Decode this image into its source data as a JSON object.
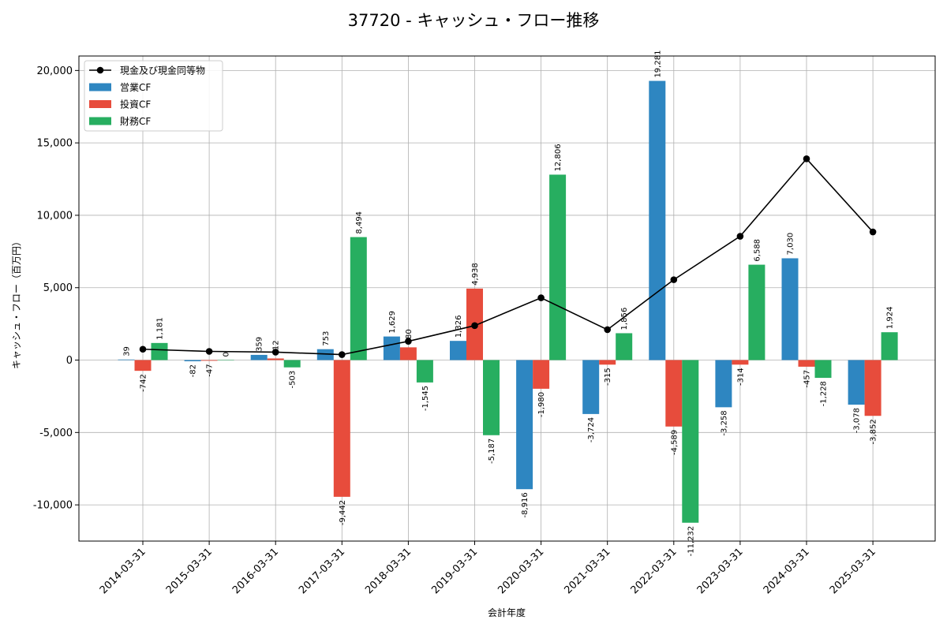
{
  "chart_data": {
    "type": "bar",
    "title": "37720 - キャッシュ・フロー推移",
    "xlabel": "会計年度",
    "ylabel": "キャッシュ・フロー（百万円）",
    "categories": [
      "2014-03-31",
      "2015-03-31",
      "2016-03-31",
      "2017-03-31",
      "2018-03-31",
      "2019-03-31",
      "2020-03-31",
      "2021-03-31",
      "2022-03-31",
      "2023-03-31",
      "2024-03-31",
      "2025-03-31"
    ],
    "ylim": [
      -12500,
      21000
    ],
    "yticks": [
      -10000,
      -5000,
      0,
      5000,
      10000,
      15000,
      20000
    ],
    "ytick_labels": [
      "-10,000",
      "-5,000",
      "0",
      "5,000",
      "10,000",
      "15,000",
      "20,000"
    ],
    "grid": true,
    "legend_position": "top-left",
    "series": [
      {
        "name": "営業CF",
        "kind": "bar",
        "color": "#2e86c1",
        "values": [
          39,
          -82,
          359,
          753,
          1629,
          1326,
          -8916,
          -3724,
          19281,
          -3258,
          7030,
          -3078
        ],
        "labels": [
          "39",
          "-82",
          "359",
          "753",
          "1,629",
          "1,326",
          "-8,916",
          "-3,724",
          "19,281",
          "-3,258",
          "7,030",
          "-3,078"
        ]
      },
      {
        "name": "投資CF",
        "kind": "bar",
        "color": "#e74c3c",
        "values": [
          -742,
          -47,
          112,
          -9442,
          880,
          4938,
          -1980,
          -315,
          -4589,
          -314,
          -457,
          -3852
        ],
        "labels": [
          "-742",
          "-47",
          "112",
          "-9,442",
          "880",
          "4,938",
          "-1,980",
          "-315",
          "-4,589",
          "-314",
          "-457",
          "-3,852"
        ]
      },
      {
        "name": "財務CF",
        "kind": "bar",
        "color": "#27ae60",
        "values": [
          1181,
          0,
          -503,
          8494,
          -1545,
          -5187,
          12806,
          1856,
          -11232,
          6588,
          -1228,
          1924
        ],
        "labels": [
          "1,181",
          "0",
          "-503",
          "8,494",
          "-1,545",
          "-5,187",
          "12,806",
          "1,856",
          "-11,232",
          "6,588",
          "-1,228",
          "1,924"
        ]
      },
      {
        "name": "現金及び現金同等物",
        "kind": "line",
        "color": "#000000",
        "values": [
          750,
          600,
          550,
          380,
          1300,
          2380,
          4300,
          2100,
          5550,
          8550,
          13900,
          8850
        ]
      }
    ]
  }
}
